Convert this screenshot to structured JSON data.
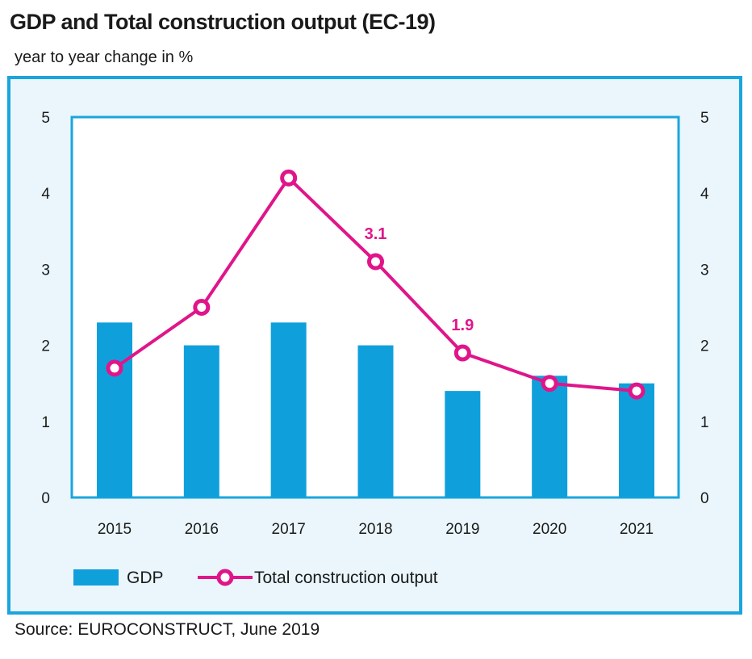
{
  "header": {
    "title": "GDP and Total construction output (EC-19)",
    "subtitle": "year to year change in %"
  },
  "footer": {
    "source": "Source: EUROCONSTRUCT, June 2019"
  },
  "colors": {
    "gdp": "#0fa0dc",
    "construction": "#e0158a",
    "frame": "#1ba5dd",
    "panel": "#eaf6fc",
    "plot": "#ffffff"
  },
  "chart_data": {
    "type": "bar",
    "title": "GDP and Total construction output (EC-19)",
    "subtitle": "year to year change in %",
    "categories": [
      "2015",
      "2016",
      "2017",
      "2018",
      "2019",
      "2020",
      "2021"
    ],
    "series": [
      {
        "name": "GDP",
        "type": "bar",
        "values": [
          2.3,
          2.0,
          2.3,
          2.0,
          1.4,
          1.6,
          1.5
        ]
      },
      {
        "name": "Total construction output",
        "type": "line",
        "values": [
          1.7,
          2.5,
          4.2,
          3.1,
          1.9,
          1.5,
          1.4
        ]
      }
    ],
    "annotations": [
      {
        "category": "2018",
        "text": "3.1"
      },
      {
        "category": "2019",
        "text": "1.9"
      }
    ],
    "ylim": [
      0,
      5
    ],
    "yticks": [
      "0",
      "1",
      "2",
      "3",
      "4",
      "5"
    ],
    "secondary_yticks": [
      "0",
      "1",
      "2",
      "3",
      "4",
      "5"
    ],
    "grid": false,
    "legend": "bottom-left"
  }
}
